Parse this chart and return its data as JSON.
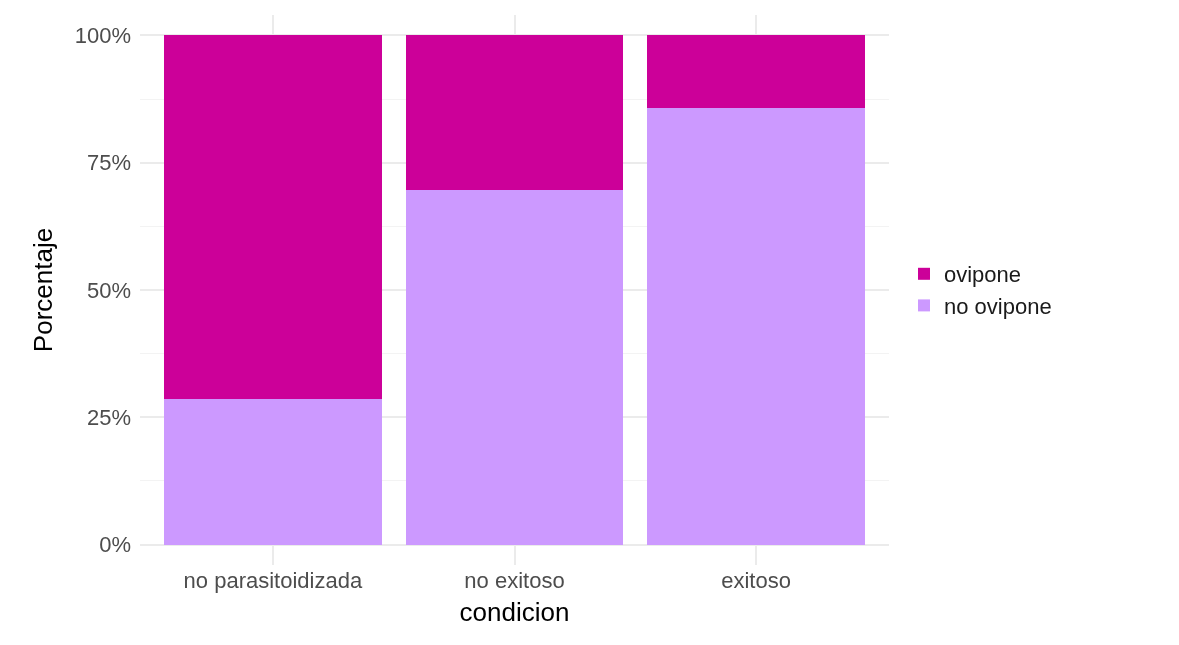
{
  "chart_data": {
    "type": "bar",
    "stacked": true,
    "xlabel": "condicion",
    "ylabel": "Porcentaje",
    "categories": [
      "no parasitoidizada",
      "no exitoso",
      "exitoso"
    ],
    "series": [
      {
        "name": "no ovipone",
        "color": "#cc99ff",
        "values": [
          28.6,
          69.6,
          85.7
        ]
      },
      {
        "name": "ovipone",
        "color": "#cc0099",
        "values": [
          71.4,
          30.4,
          14.3
        ]
      }
    ],
    "ylim": [
      -4,
      104
    ],
    "yticks": [
      {
        "value": 0,
        "label": "0%"
      },
      {
        "value": 25,
        "label": "25%"
      },
      {
        "value": 50,
        "label": "50%"
      },
      {
        "value": 75,
        "label": "75%"
      },
      {
        "value": 100,
        "label": "100%"
      }
    ],
    "grid": true,
    "legend": "right"
  }
}
